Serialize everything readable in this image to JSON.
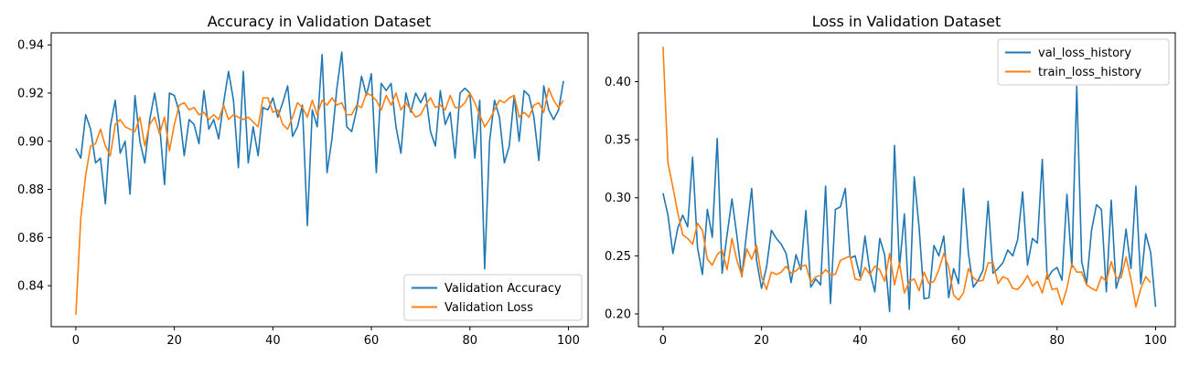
{
  "colors": {
    "series1": "#1f77b4",
    "series2": "#ff7f0e",
    "axes": "#000000",
    "legend_border": "#cccccc"
  },
  "chart_data": [
    {
      "type": "line",
      "title": "Accuracy in Validation Dataset",
      "xlabel": "",
      "ylabel": "",
      "xlim": [
        -5,
        104
      ],
      "ylim": [
        0.823,
        0.945
      ],
      "xticks": [
        0,
        20,
        40,
        60,
        80,
        100
      ],
      "yticks": [
        0.84,
        0.86,
        0.88,
        0.9,
        0.92,
        0.94
      ],
      "ytick_labels": [
        "0.84",
        "0.86",
        "0.88",
        "0.90",
        "0.92",
        "0.94"
      ],
      "grid": false,
      "legend_position": "lower-right",
      "series": [
        {
          "name": "Validation Accuracy",
          "color": "#1f77b4",
          "x_start": 0,
          "values": [
            0.897,
            0.893,
            0.911,
            0.905,
            0.891,
            0.893,
            0.874,
            0.906,
            0.917,
            0.895,
            0.9,
            0.878,
            0.919,
            0.9,
            0.891,
            0.909,
            0.92,
            0.907,
            0.882,
            0.92,
            0.919,
            0.912,
            0.894,
            0.909,
            0.907,
            0.899,
            0.921,
            0.905,
            0.909,
            0.901,
            0.916,
            0.929,
            0.917,
            0.889,
            0.929,
            0.891,
            0.906,
            0.894,
            0.914,
            0.913,
            0.918,
            0.91,
            0.916,
            0.923,
            0.902,
            0.906,
            0.915,
            0.865,
            0.913,
            0.906,
            0.936,
            0.887,
            0.901,
            0.922,
            0.937,
            0.906,
            0.904,
            0.913,
            0.927,
            0.919,
            0.928,
            0.887,
            0.924,
            0.921,
            0.924,
            0.906,
            0.895,
            0.92,
            0.912,
            0.92,
            0.916,
            0.92,
            0.904,
            0.898,
            0.921,
            0.907,
            0.912,
            0.893,
            0.92,
            0.922,
            0.92,
            0.893,
            0.917,
            0.847,
            0.9,
            0.917,
            0.91,
            0.891,
            0.898,
            0.919,
            0.9,
            0.921,
            0.919,
            0.91,
            0.892,
            0.923,
            0.913,
            0.909,
            0.913,
            0.925
          ]
        },
        {
          "name": "Validation Loss",
          "color": "#ff7f0e",
          "x_start": 0,
          "values": [
            0.828,
            0.868,
            0.886,
            0.898,
            0.899,
            0.905,
            0.898,
            0.894,
            0.907,
            0.909,
            0.906,
            0.905,
            0.904,
            0.91,
            0.898,
            0.907,
            0.91,
            0.903,
            0.91,
            0.896,
            0.907,
            0.915,
            0.916,
            0.913,
            0.914,
            0.911,
            0.912,
            0.909,
            0.911,
            0.909,
            0.915,
            0.909,
            0.911,
            0.91,
            0.909,
            0.91,
            0.908,
            0.906,
            0.918,
            0.918,
            0.912,
            0.913,
            0.907,
            0.905,
            0.91,
            0.916,
            0.914,
            0.91,
            0.917,
            0.911,
            0.917,
            0.915,
            0.918,
            0.915,
            0.916,
            0.911,
            0.911,
            0.915,
            0.914,
            0.92,
            0.919,
            0.917,
            0.913,
            0.919,
            0.915,
            0.92,
            0.913,
            0.916,
            0.913,
            0.91,
            0.911,
            0.915,
            0.918,
            0.914,
            0.915,
            0.913,
            0.919,
            0.914,
            0.914,
            0.916,
            0.92,
            0.916,
            0.911,
            0.906,
            0.909,
            0.913,
            0.917,
            0.916,
            0.918,
            0.919,
            0.91,
            0.912,
            0.91,
            0.915,
            0.916,
            0.912,
            0.922,
            0.917,
            0.914,
            0.917
          ]
        }
      ]
    },
    {
      "type": "line",
      "title": "Loss in Validation Dataset",
      "xlabel": "",
      "ylabel": "",
      "xlim": [
        -5,
        104
      ],
      "ylim": [
        0.189,
        0.442
      ],
      "xticks": [
        0,
        20,
        40,
        60,
        80,
        100
      ],
      "yticks": [
        0.2,
        0.25,
        0.3,
        0.35,
        0.4
      ],
      "ytick_labels": [
        "0.20",
        "0.25",
        "0.30",
        "0.35",
        "0.40"
      ],
      "grid": false,
      "legend_position": "upper-right",
      "series": [
        {
          "name": "val_loss_history",
          "color": "#1f77b4",
          "x_start": 0,
          "values": [
            0.304,
            0.285,
            0.252,
            0.274,
            0.285,
            0.275,
            0.335,
            0.257,
            0.234,
            0.29,
            0.266,
            0.351,
            0.235,
            0.268,
            0.299,
            0.267,
            0.232,
            0.271,
            0.308,
            0.246,
            0.222,
            0.24,
            0.272,
            0.265,
            0.26,
            0.252,
            0.227,
            0.251,
            0.238,
            0.289,
            0.223,
            0.23,
            0.225,
            0.31,
            0.209,
            0.29,
            0.292,
            0.308,
            0.248,
            0.25,
            0.232,
            0.267,
            0.236,
            0.219,
            0.265,
            0.251,
            0.202,
            0.345,
            0.24,
            0.286,
            0.204,
            0.318,
            0.274,
            0.213,
            0.214,
            0.259,
            0.25,
            0.267,
            0.214,
            0.239,
            0.226,
            0.308,
            0.252,
            0.223,
            0.229,
            0.238,
            0.297,
            0.235,
            0.239,
            0.244,
            0.255,
            0.25,
            0.264,
            0.305,
            0.242,
            0.265,
            0.261,
            0.333,
            0.23,
            0.237,
            0.24,
            0.229,
            0.303,
            0.24,
            0.396,
            0.245,
            0.226,
            0.272,
            0.294,
            0.29,
            0.219,
            0.298,
            0.222,
            0.237,
            0.273,
            0.239,
            0.31,
            0.226,
            0.269,
            0.253,
            0.206
          ]
        },
        {
          "name": "train_loss_history",
          "color": "#ff7f0e",
          "x_start": 0,
          "values": [
            0.43,
            0.33,
            0.309,
            0.287,
            0.268,
            0.265,
            0.26,
            0.278,
            0.272,
            0.247,
            0.242,
            0.251,
            0.255,
            0.238,
            0.265,
            0.246,
            0.233,
            0.256,
            0.247,
            0.259,
            0.232,
            0.221,
            0.236,
            0.234,
            0.236,
            0.241,
            0.235,
            0.237,
            0.241,
            0.242,
            0.227,
            0.232,
            0.233,
            0.238,
            0.234,
            0.234,
            0.246,
            0.248,
            0.25,
            0.23,
            0.229,
            0.24,
            0.234,
            0.241,
            0.238,
            0.228,
            0.252,
            0.225,
            0.244,
            0.218,
            0.228,
            0.23,
            0.22,
            0.236,
            0.226,
            0.228,
            0.238,
            0.252,
            0.24,
            0.216,
            0.212,
            0.218,
            0.239,
            0.231,
            0.228,
            0.229,
            0.244,
            0.244,
            0.226,
            0.232,
            0.23,
            0.222,
            0.221,
            0.226,
            0.233,
            0.224,
            0.228,
            0.218,
            0.235,
            0.221,
            0.222,
            0.208,
            0.222,
            0.243,
            0.236,
            0.236,
            0.225,
            0.222,
            0.22,
            0.232,
            0.228,
            0.245,
            0.231,
            0.231,
            0.249,
            0.23,
            0.206,
            0.222,
            0.232,
            0.227
          ]
        }
      ]
    }
  ]
}
